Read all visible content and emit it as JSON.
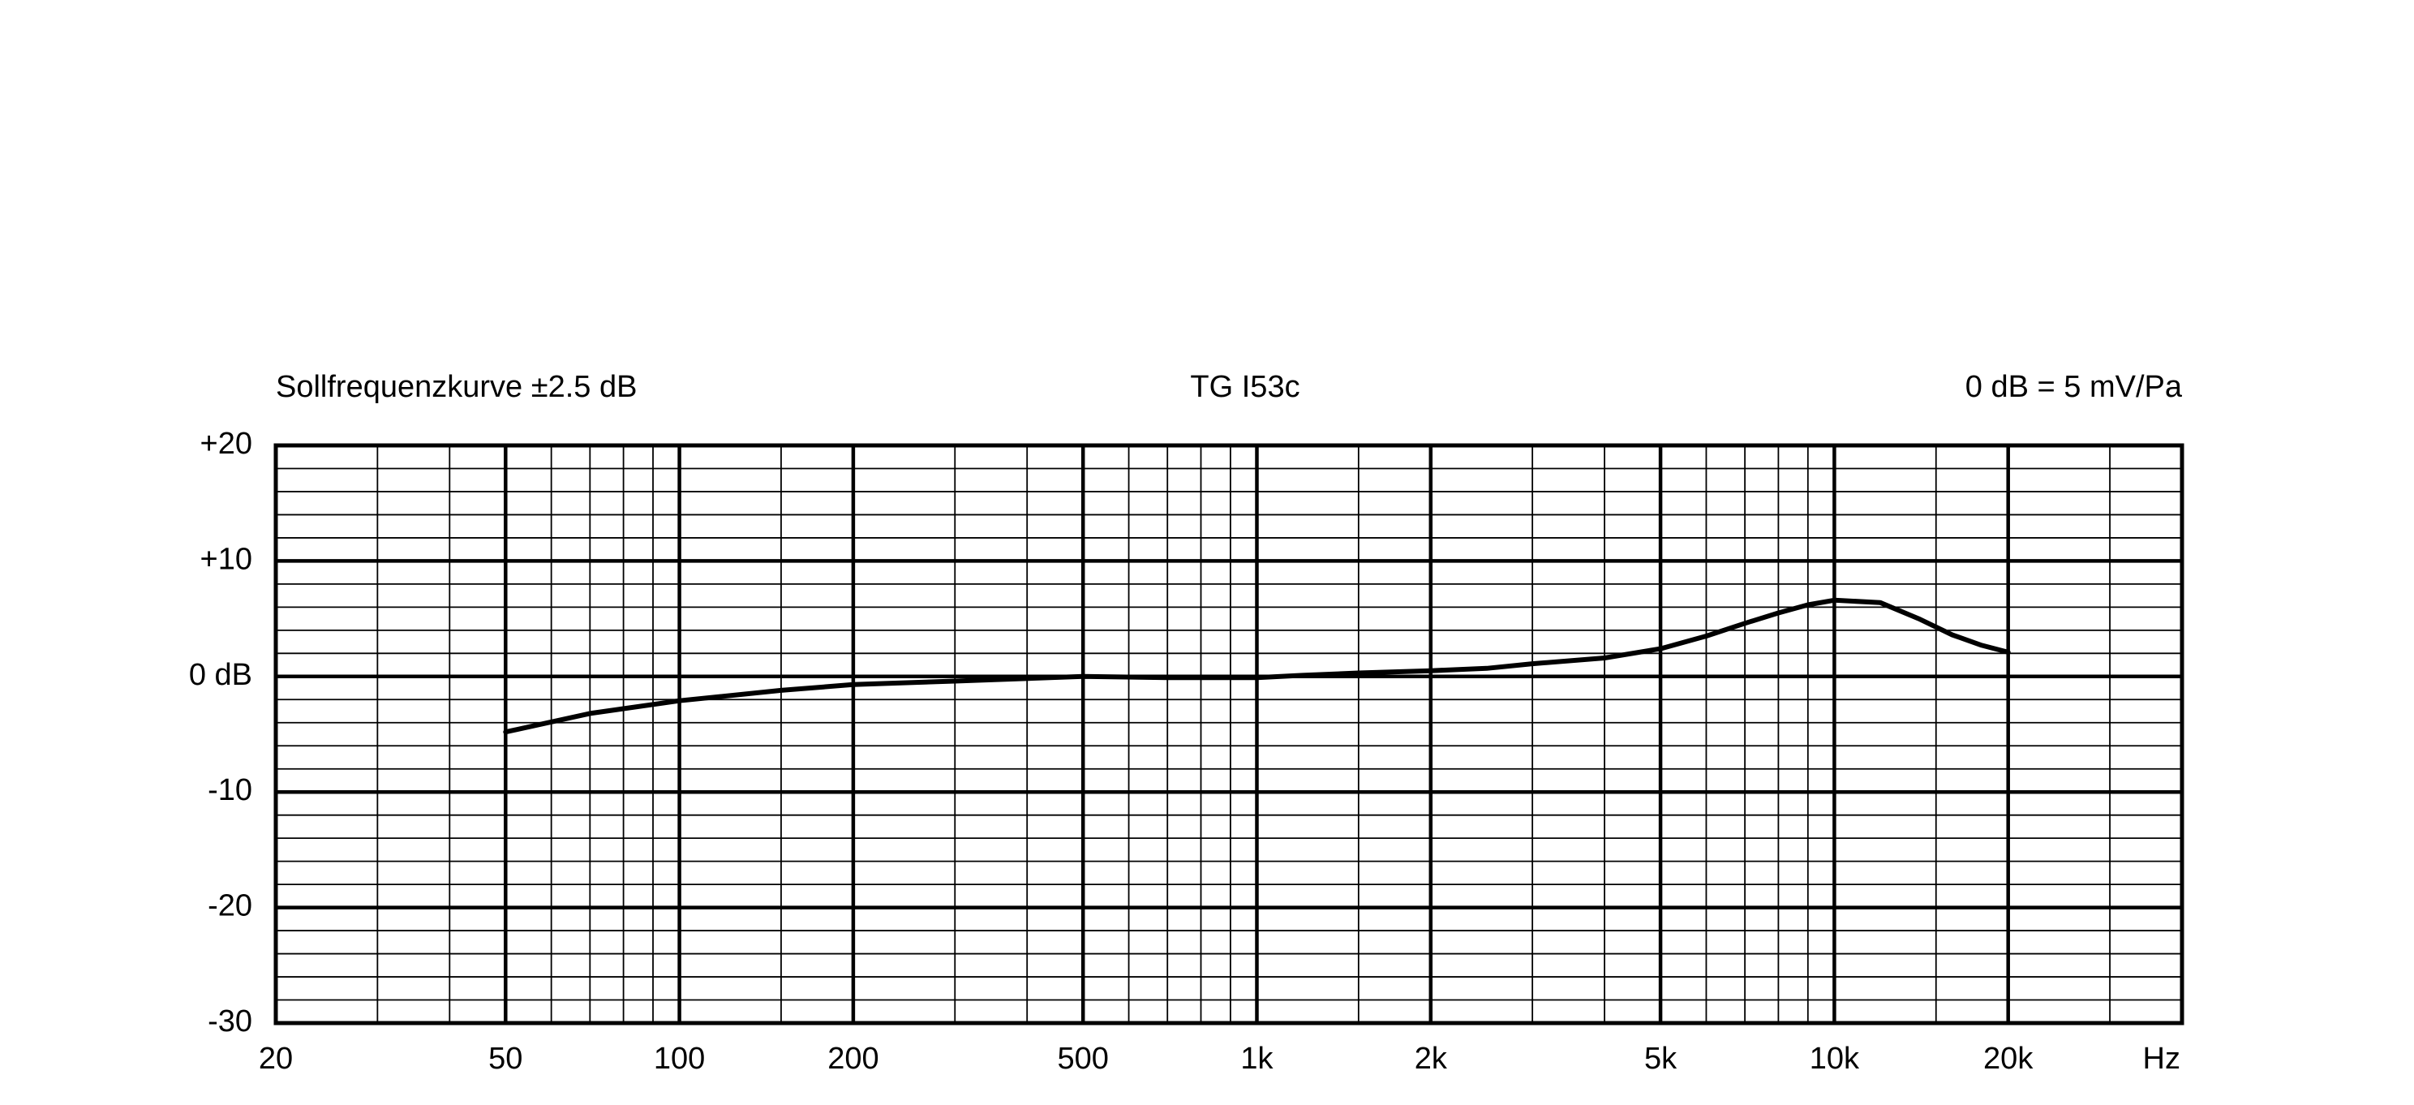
{
  "chart_data": {
    "type": "line",
    "title": "TG I53c",
    "left_note": "Sollfrequenzkurve ±2.5 dB",
    "right_note": "0 dB = 5 mV/Pa",
    "x_label": "Hz",
    "xscale": "log",
    "xlim": [
      20,
      40000
    ],
    "xticks": [
      20,
      50,
      100,
      200,
      500,
      {
        "value": 1000,
        "label": "1k"
      },
      {
        "value": 2000,
        "label": "2k"
      },
      {
        "value": 5000,
        "label": "5k"
      },
      {
        "value": 10000,
        "label": "10k"
      },
      {
        "value": 20000,
        "label": "20k"
      }
    ],
    "x_minor_ticks": [
      30,
      40,
      60,
      70,
      80,
      90,
      150,
      300,
      400,
      600,
      700,
      800,
      900,
      1500,
      3000,
      4000,
      6000,
      7000,
      8000,
      9000,
      15000,
      30000
    ],
    "ylim": [
      -30,
      20
    ],
    "yticks": [
      {
        "value": 20,
        "label": "+20"
      },
      {
        "value": 10,
        "label": "+10"
      },
      {
        "value": 0,
        "label": "0 dB"
      },
      -10,
      -20,
      -30
    ],
    "y_minor_ticks": [
      -28,
      -26,
      -24,
      -22,
      -18,
      -16,
      -14,
      -12,
      -8,
      -6,
      -4,
      -2,
      2,
      4,
      6,
      8,
      12,
      14,
      16,
      18
    ],
    "grid": true,
    "color": "#000000",
    "x": [
      50,
      70,
      100,
      150,
      200,
      300,
      500,
      700,
      1000,
      1200,
      1500,
      2000,
      2500,
      3000,
      4000,
      5000,
      6000,
      7000,
      8000,
      9000,
      10000,
      12000,
      14000,
      16000,
      18000,
      20000
    ],
    "values": [
      -4.8,
      -3.2,
      -2.1,
      -1.2,
      -0.7,
      -0.4,
      0,
      -0.1,
      -0.1,
      0.1,
      0.3,
      0.5,
      0.7,
      1.1,
      1.6,
      2.4,
      3.5,
      4.6,
      5.5,
      6.2,
      6.6,
      6.4,
      5.0,
      3.6,
      2.7,
      2.1
    ]
  }
}
